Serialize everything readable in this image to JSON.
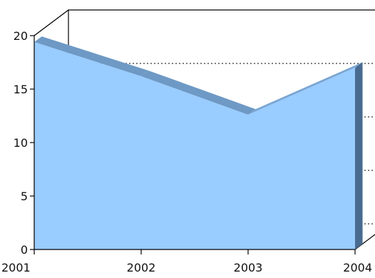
{
  "chart_data": {
    "type": "area",
    "title": "",
    "xlabel": "",
    "ylabel": "",
    "x": [
      "2001",
      "2002",
      "2003",
      "2004"
    ],
    "series": [
      {
        "values": [
          19.4,
          16.2,
          12.6,
          17.0
        ]
      }
    ],
    "ylim": [
      0,
      20
    ],
    "yticks": [
      "0",
      "5",
      "10",
      "15",
      "20"
    ],
    "grid": true,
    "style": "3d",
    "colors": {
      "front": "#99ccff",
      "top": "#6e99c5",
      "side": "#4a6b90",
      "axis": "#000000",
      "grid": "#000000"
    }
  }
}
